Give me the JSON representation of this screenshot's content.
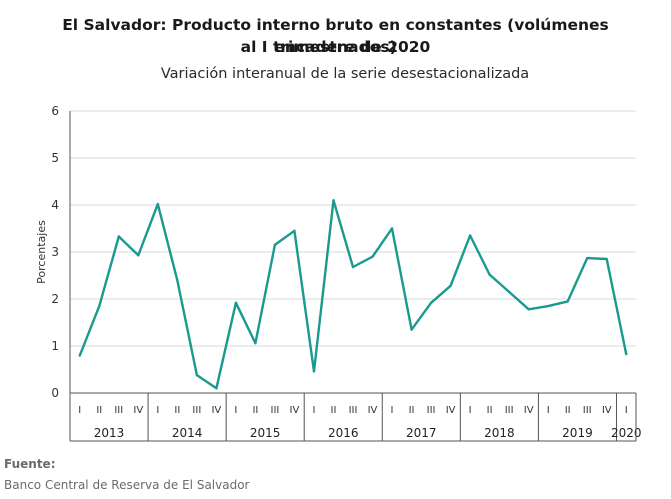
{
  "title_line1": "El Salvador: Producto interno bruto en constantes (volúmenes encadenados)",
  "title_line2": "al I trimestre de 2020",
  "subtitle": "Variación interanual de la serie desestacionalizada",
  "source_label": "Fuente:",
  "source_text": "Banco Central de Reserva de El Salvador",
  "colors": {
    "line": "#1a9a8e",
    "grid": "#d9d9d9",
    "axis": "#555555"
  },
  "chart_data": {
    "type": "line",
    "title": "El Salvador: Producto interno bruto en constantes (volúmenes encadenados) al I trimestre de 2020",
    "subtitle": "Variación interanual de la serie desestacionalizada",
    "ylabel": "Porcentajes",
    "xlabel": "",
    "ylim": [
      0,
      6
    ],
    "yticks": [
      0,
      1,
      2,
      3,
      4,
      5,
      6
    ],
    "grid": true,
    "legend": "none",
    "quarters": [
      "I",
      "II",
      "III",
      "IV",
      "I",
      "II",
      "III",
      "IV",
      "I",
      "II",
      "III",
      "IV",
      "I",
      "II",
      "III",
      "IV",
      "I",
      "II",
      "III",
      "IV",
      "I",
      "II",
      "III",
      "IV",
      "I",
      "II",
      "III",
      "IV",
      "I"
    ],
    "years": [
      {
        "label": "2013",
        "count": 4
      },
      {
        "label": "2014",
        "count": 4
      },
      {
        "label": "2015",
        "count": 4
      },
      {
        "label": "2016",
        "count": 4
      },
      {
        "label": "2017",
        "count": 4
      },
      {
        "label": "2018",
        "count": 4
      },
      {
        "label": "2019",
        "count": 4
      },
      {
        "label": "2020",
        "count": 1
      }
    ],
    "series": [
      {
        "values": [
          0.8,
          1.85,
          3.33,
          2.93,
          4.02,
          2.4,
          0.38,
          0.1,
          1.92,
          1.06,
          3.15,
          3.45,
          0.46,
          4.1,
          2.68,
          2.9,
          3.5,
          1.35,
          1.92,
          2.28,
          3.35,
          2.52,
          2.15,
          1.78,
          1.85,
          1.95,
          2.87,
          2.85,
          0.83
        ]
      }
    ]
  }
}
